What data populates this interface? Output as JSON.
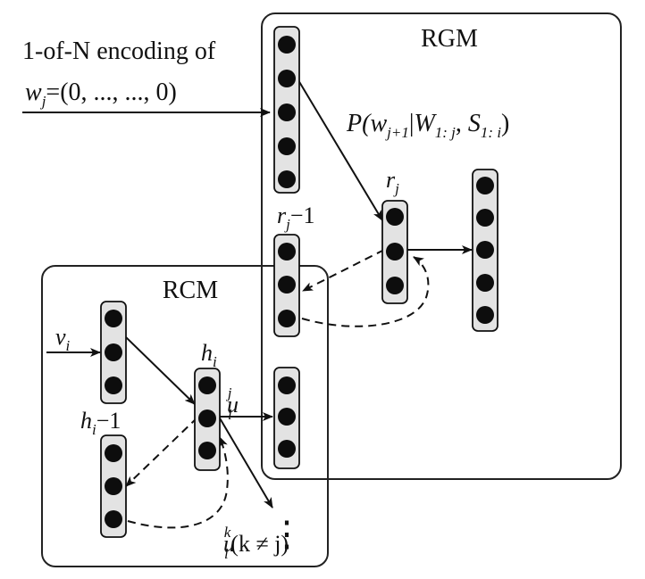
{
  "modules": {
    "rgm": "RGM",
    "rcm": "RCM"
  },
  "input": {
    "caption": "1-of-N encoding of",
    "w_var": "w",
    "w_sub": "j",
    "w_value": "=(0, ..., ..., 0)"
  },
  "prob": {
    "p_open": "P(",
    "w": "w",
    "w_sub": "j+1",
    "bar": "|",
    "W": "W",
    "W_sub": "1: j",
    "comma": ", ",
    "S": "S",
    "S_sub": "1: i",
    "close": ")"
  },
  "labels": {
    "r": "r",
    "r_sub": "j",
    "rprev_tail": "−1",
    "v": "v",
    "v_sub": "i",
    "h": "h",
    "h_sub": "i",
    "hprev_tail": "−1",
    "u": "u",
    "u_sub": "i",
    "uj_sup": "j",
    "uk_sup": "k",
    "uk_tail": "(k ≠ j)"
  },
  "ellipsis": "⋮"
}
